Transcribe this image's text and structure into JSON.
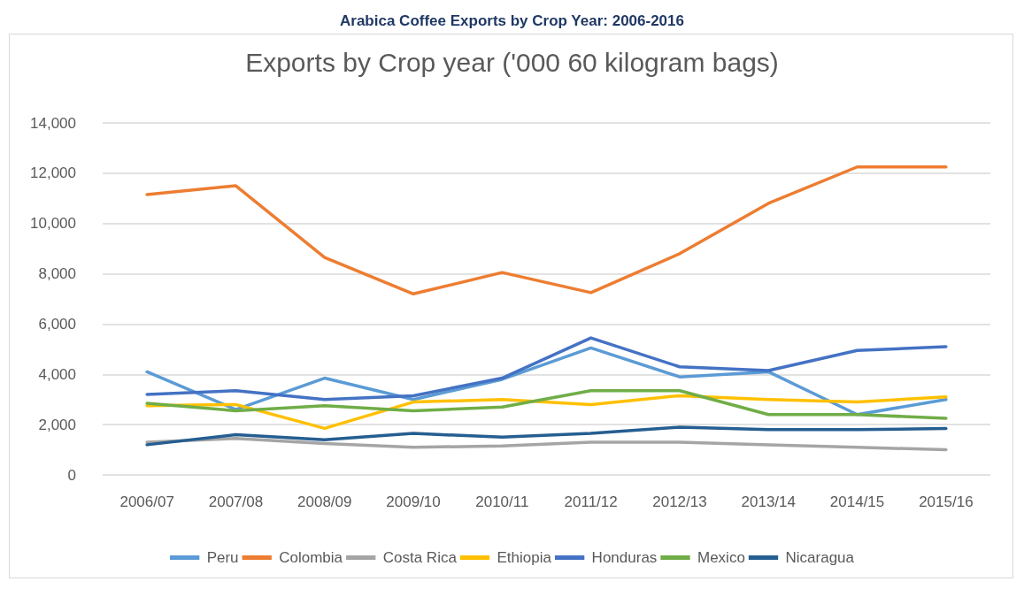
{
  "chart_data": {
    "type": "line",
    "title": "Arabica Coffee Exports by Crop Year: 2006-2016",
    "subtitle": "Exports by Crop year ('000 60 kilogram bags)",
    "categories": [
      "2006/07",
      "2007/08",
      "2008/09",
      "2009/10",
      "2010/11",
      "2011/12",
      "2012/13",
      "2013/14",
      "2014/15",
      "2015/16"
    ],
    "series": [
      {
        "name": "Peru",
        "color": "#5b9bd5",
        "values": [
          4100,
          2600,
          3850,
          3000,
          3800,
          5050,
          3900,
          4100,
          2400,
          3000
        ]
      },
      {
        "name": "Colombia",
        "color": "#ed7d31",
        "values": [
          11150,
          11500,
          8650,
          7200,
          8050,
          7250,
          8800,
          10800,
          12250,
          12250
        ]
      },
      {
        "name": "Costa Rica",
        "color": "#a5a5a5",
        "values": [
          1300,
          1450,
          1250,
          1100,
          1150,
          1300,
          1300,
          1200,
          1100,
          1000
        ]
      },
      {
        "name": "Ethiopia",
        "color": "#ffc000",
        "values": [
          2750,
          2800,
          1850,
          2900,
          3000,
          2800,
          3150,
          3000,
          2900,
          3100
        ]
      },
      {
        "name": "Honduras",
        "color": "#4472c4",
        "values": [
          3200,
          3350,
          3000,
          3150,
          3850,
          5450,
          4300,
          4150,
          4950,
          5100
        ]
      },
      {
        "name": "Mexico",
        "color": "#70ad47",
        "values": [
          2850,
          2550,
          2750,
          2550,
          2700,
          3350,
          3350,
          2400,
          2400,
          2250
        ]
      },
      {
        "name": "Nicaragua",
        "color": "#255e91",
        "values": [
          1200,
          1600,
          1400,
          1650,
          1500,
          1650,
          1900,
          1800,
          1800,
          1850
        ]
      }
    ],
    "ylim": [
      0,
      14000
    ],
    "yticks": [
      {
        "value": 0,
        "label": "0"
      },
      {
        "value": 2000,
        "label": "2,000"
      },
      {
        "value": 4000,
        "label": "4,000"
      },
      {
        "value": 6000,
        "label": "6,000"
      },
      {
        "value": 8000,
        "label": "8,000"
      },
      {
        "value": 10000,
        "label": "10,000"
      },
      {
        "value": 12000,
        "label": "12,000"
      },
      {
        "value": 14000,
        "label": "14,000"
      }
    ],
    "grid": "y",
    "legend": "bottom",
    "marker": "none",
    "line_style": "solid"
  }
}
